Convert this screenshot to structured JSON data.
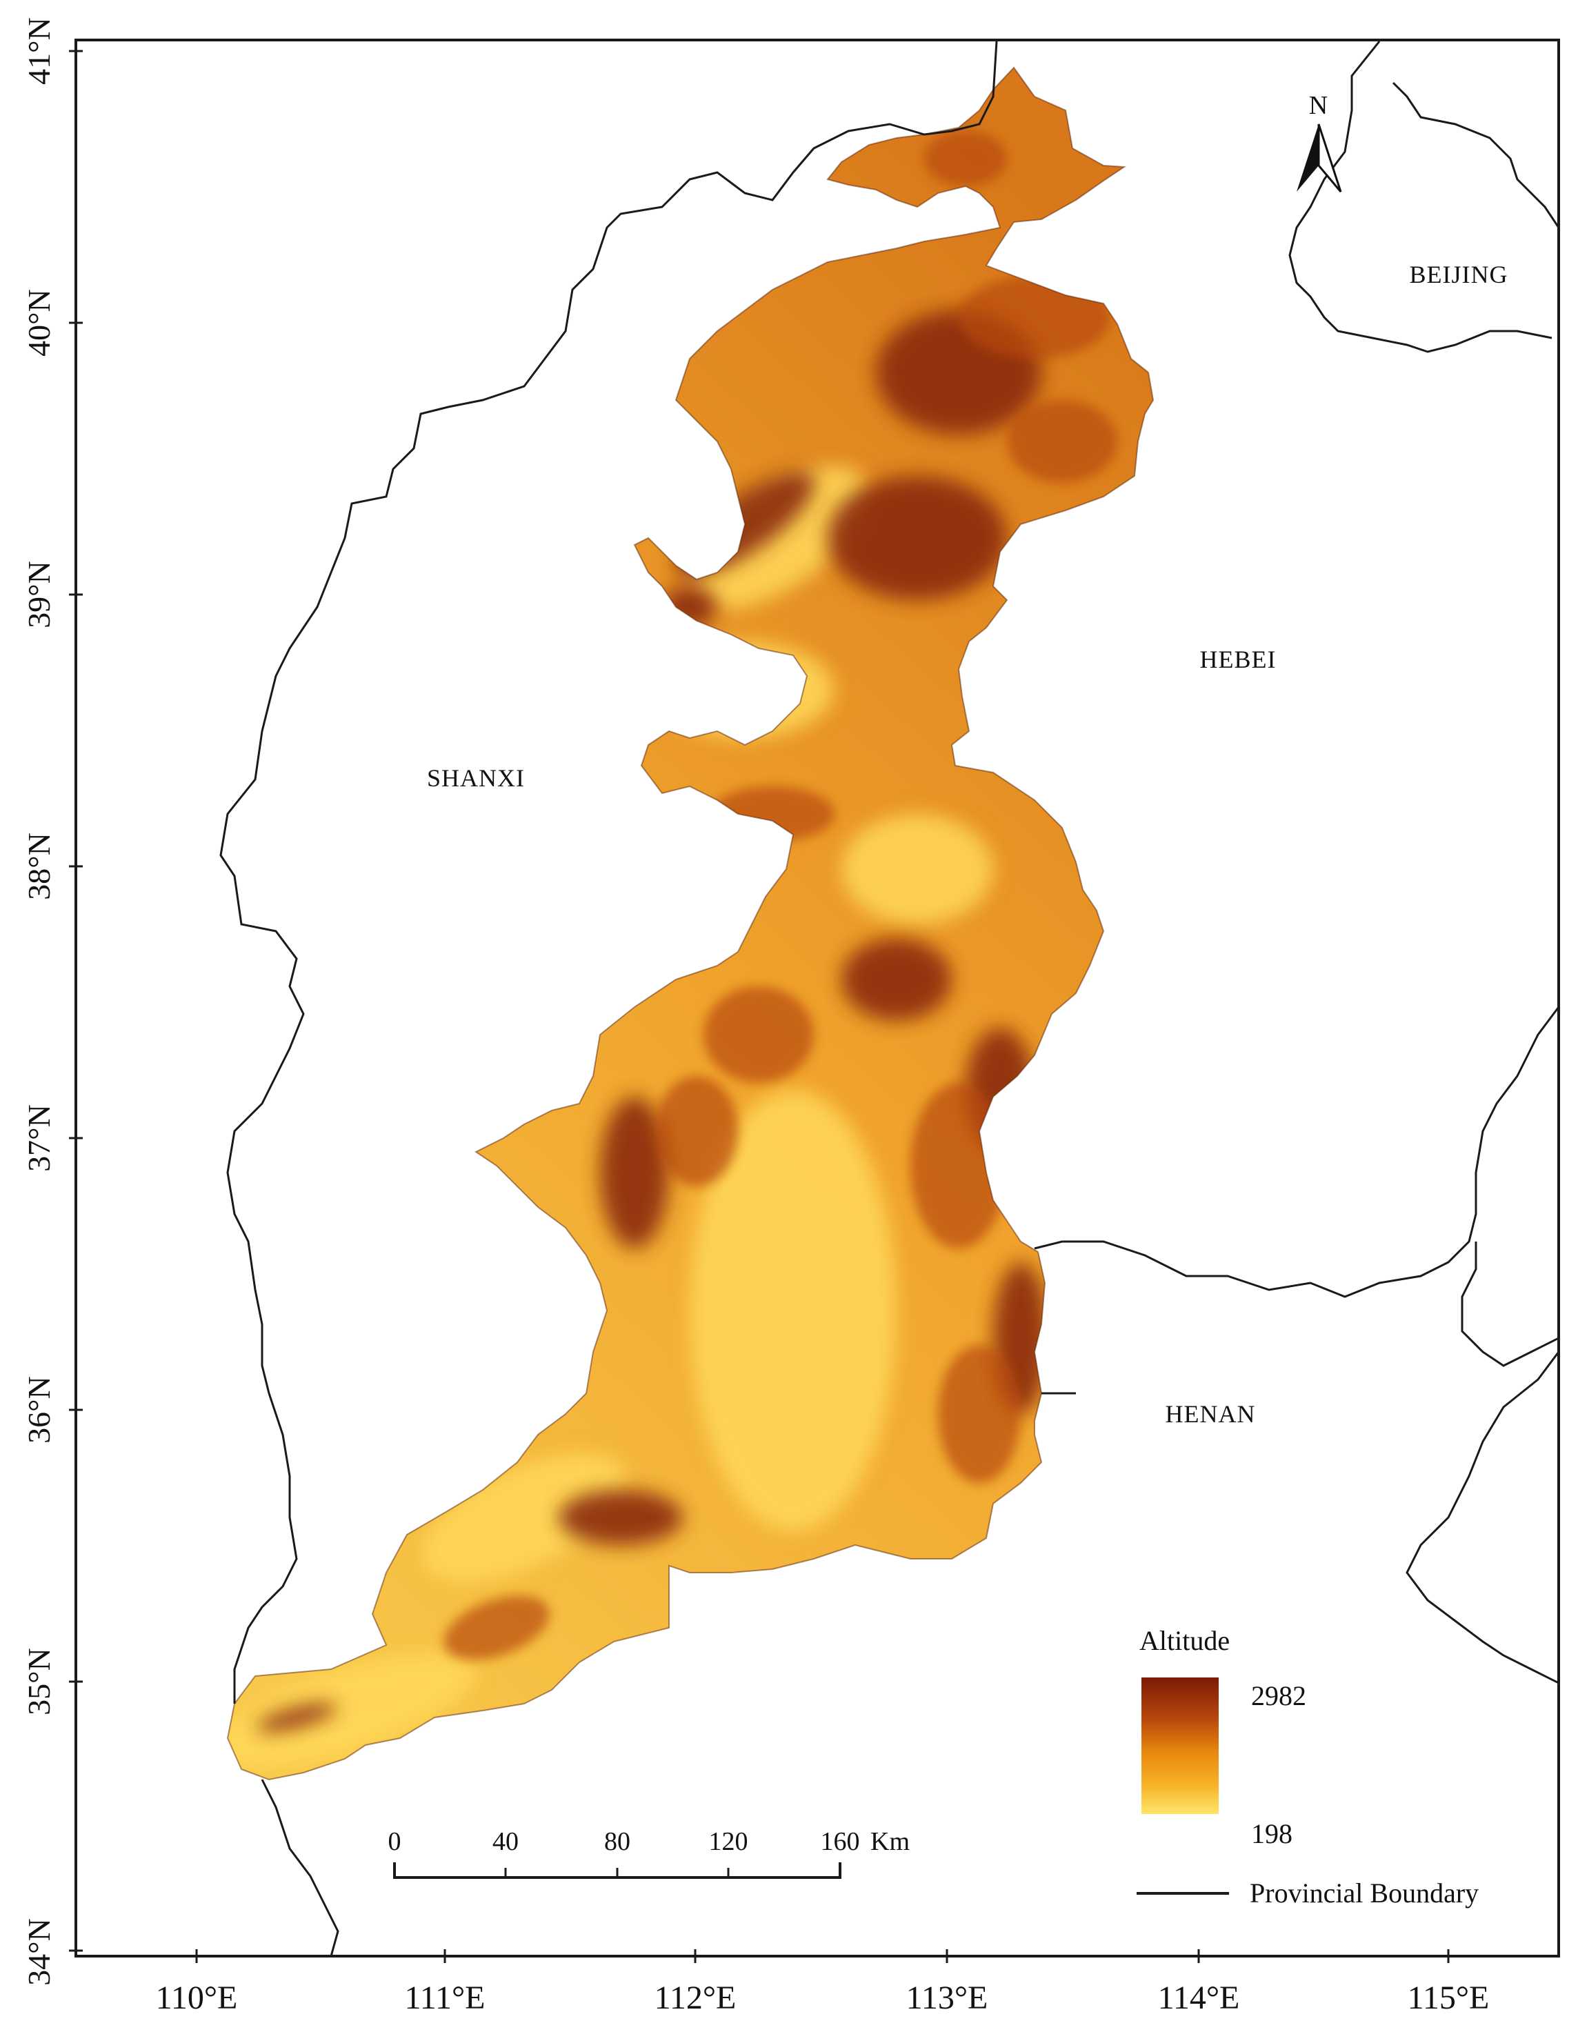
{
  "map": {
    "latitudes": [
      "41°N",
      "40°N",
      "39°N",
      "38°N",
      "37°N",
      "36°N",
      "35°N",
      "34°N"
    ],
    "longitudes": [
      "110°E",
      "111°E",
      "112°E",
      "113°E",
      "114°E",
      "115°E"
    ],
    "provinces": {
      "beijing": "BEIJING",
      "hebei": "HEBEI",
      "shanxi": "SHANXI",
      "henan": "HENAN"
    },
    "north_arrow": "N",
    "legend": {
      "title": "Altitude",
      "max": "2982",
      "min": "198",
      "ramp_colors": [
        "#7a1a06",
        "#b8470c",
        "#e8880f",
        "#f7b52a",
        "#ffe56b"
      ],
      "boundary_label": "Provincial Boundary"
    },
    "scale_bar": {
      "ticks": [
        "0",
        "40",
        "80",
        "120",
        "160"
      ],
      "unit": "Km"
    },
    "colors": {
      "region_fill": "#f3a628",
      "ridge_dark": "#8a2a08",
      "boundary": "#1a1a1a"
    }
  }
}
